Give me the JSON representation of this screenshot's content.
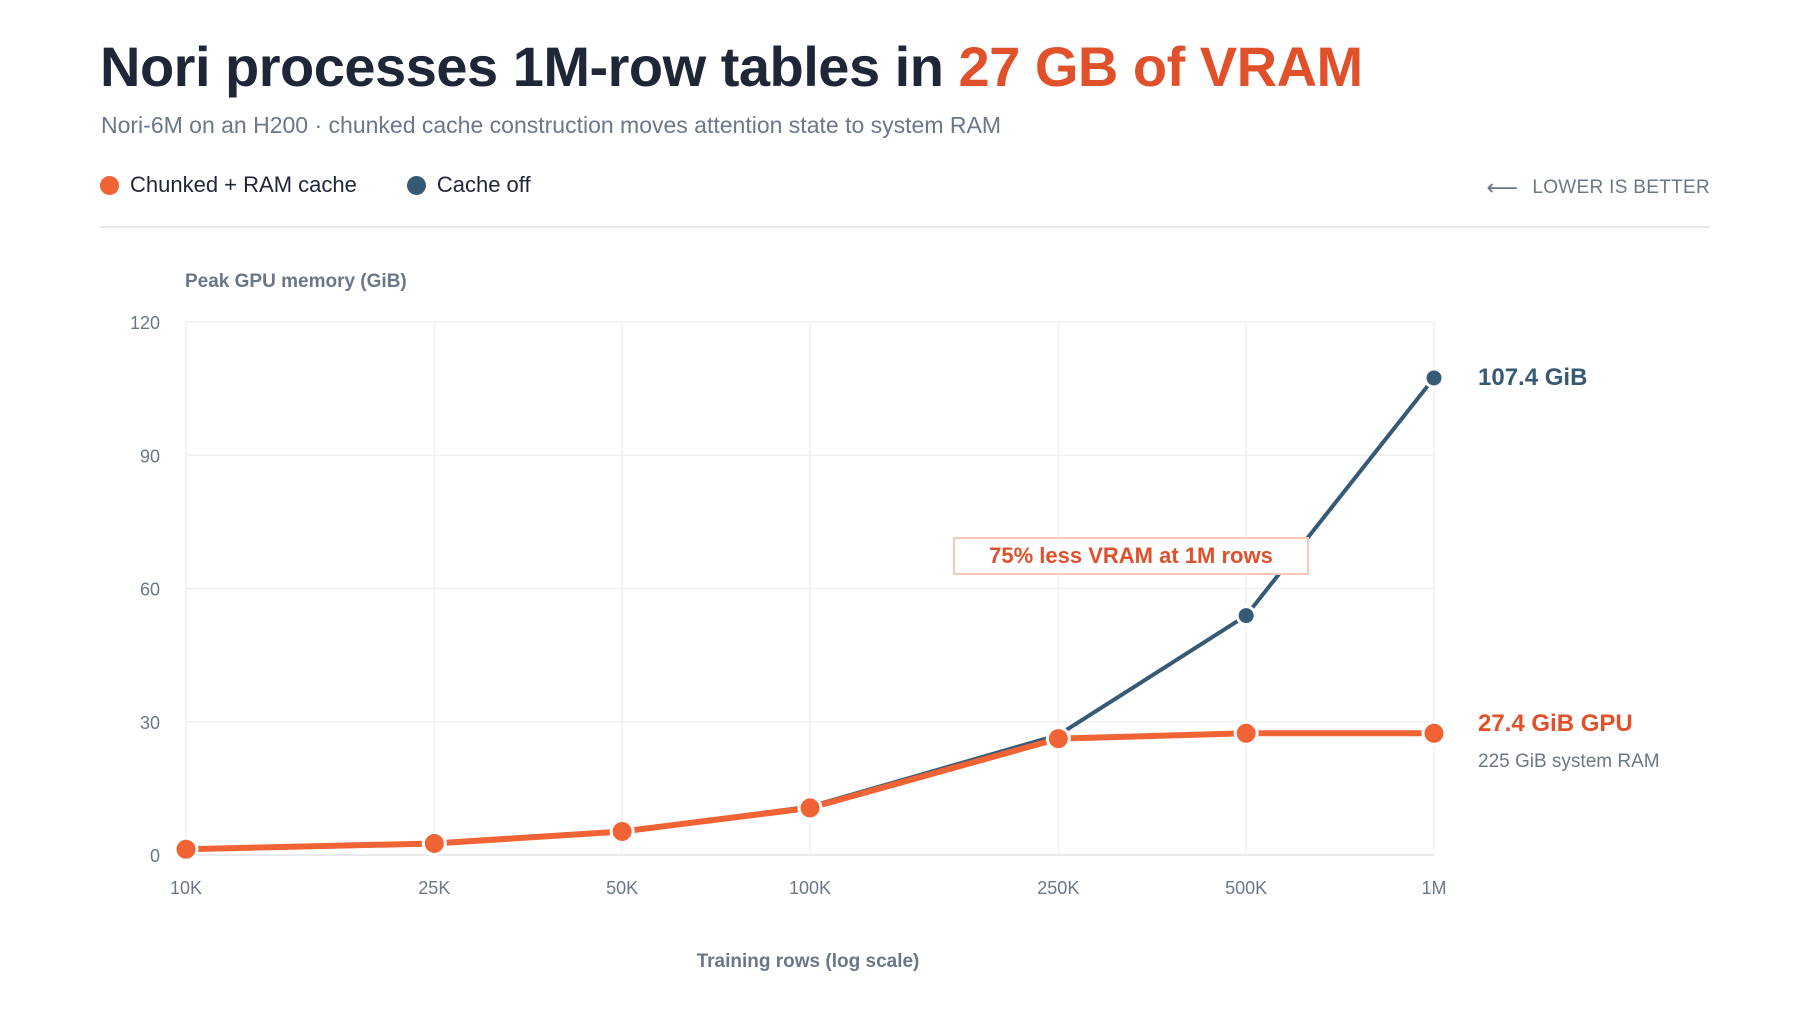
{
  "header": {
    "title_main": "Nori processes 1M-row tables in ",
    "title_accent": "27 GB of VRAM",
    "subtitle": "Nori-6M on an H200 · chunked cache construction moves attention state to system RAM",
    "lower_better": "LOWER IS BETTER"
  },
  "colors": {
    "chunked": "#ef6335",
    "chunked_text": "#e0502a",
    "cache_off": "#375a74",
    "grid": "#eef0f3",
    "axis_text": "#6b7788"
  },
  "chart_data": {
    "type": "line",
    "x_scale": "log",
    "x": [
      10000,
      25000,
      50000,
      100000,
      250000,
      500000,
      1000000
    ],
    "x_tick_labels": [
      "10K",
      "25K",
      "50K",
      "100K",
      "250K",
      "500K",
      "1M"
    ],
    "ylim": [
      0,
      120
    ],
    "y_ticks": [
      0,
      30,
      60,
      90,
      120
    ],
    "ylabel": "Peak GPU memory (GiB)",
    "xlabel": "Training rows (log scale)",
    "grid": true,
    "legend_position": "top-left",
    "series": [
      {
        "name": "Chunked + RAM cache",
        "color": "#ef6335",
        "values": [
          1.3,
          2.6,
          5.3,
          10.6,
          26.2,
          27.4,
          27.4
        ]
      },
      {
        "name": "Cache off",
        "color": "#375a74",
        "values": [
          1.3,
          2.6,
          5.3,
          10.9,
          27.0,
          53.9,
          107.4
        ]
      }
    ],
    "annotations": {
      "callout": "75% less VRAM at 1M rows",
      "cache_off_end_label": "107.4 GiB",
      "chunked_end_label": "27.4 GiB GPU",
      "chunked_end_sublabel": "225 GiB system RAM"
    }
  }
}
